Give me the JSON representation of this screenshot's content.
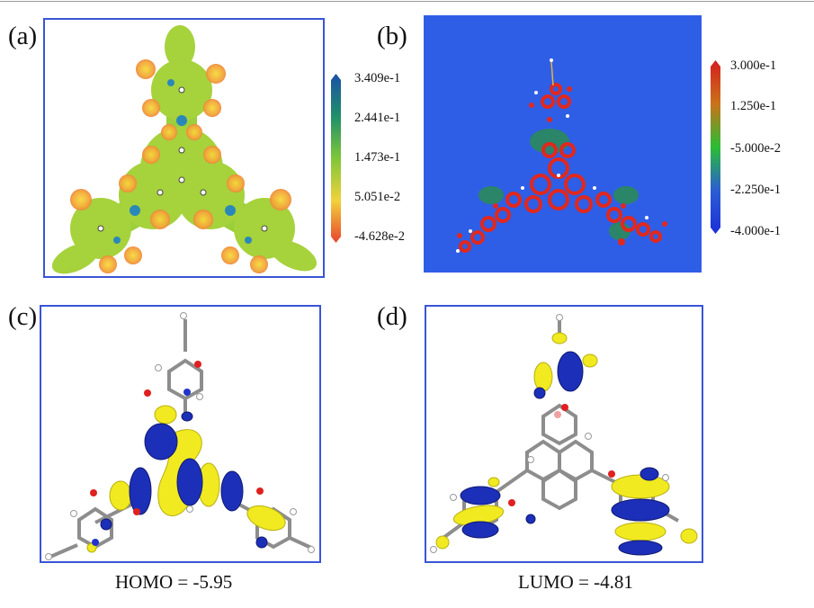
{
  "panels": {
    "a": {
      "label": "(a)",
      "colorbar": {
        "ticks": [
          "3.409e-1",
          "2.441e-1",
          "1.473e-1",
          "5.051e-2",
          "-4.628e-2"
        ],
        "colors": [
          "#1b4fa8",
          "#1f8f6a",
          "#7fc63a",
          "#f1d23a",
          "#e8432e"
        ]
      }
    },
    "b": {
      "label": "(b)",
      "colorbar": {
        "ticks": [
          "3.000e-1",
          "1.250e-1",
          "-5.000e-2",
          "-2.250e-1",
          "-4.000e-1"
        ],
        "colors": [
          "#d41e1e",
          "#c9721a",
          "#2bbd35",
          "#2a5ed3",
          "#1c2fd8"
        ]
      },
      "background_color": "#2f5ee6"
    },
    "c": {
      "label": "(c)",
      "caption": "HOMO = -5.95"
    },
    "d": {
      "label": "(d)",
      "caption": "LUMO = -4.81"
    }
  },
  "colors": {
    "frame": "#3a55d6",
    "orbital_positive": "#f1ea20",
    "orbital_negative": "#1c2fb8",
    "carbon": "#8d8d8d",
    "oxygen": "#e02020",
    "nitrogen": "#2233cc"
  }
}
